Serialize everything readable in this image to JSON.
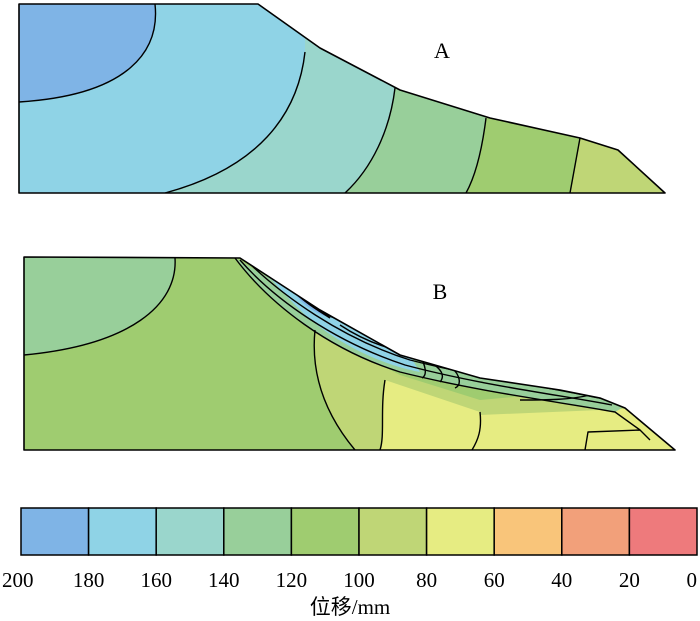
{
  "panel_a": {
    "label": "A"
  },
  "panel_b": {
    "label": "B"
  },
  "colorbar": {
    "unit_label": "位移/mm",
    "ticks": [
      "200",
      "180",
      "160",
      "140",
      "120",
      "100",
      "80",
      "60",
      "40",
      "20",
      "0"
    ],
    "colors": [
      "#7fb4e6",
      "#8fd3e6",
      "#9ad6cc",
      "#98cf9a",
      "#9fcc70",
      "#bfd676",
      "#e6ec82",
      "#f9c57a",
      "#f2a07a",
      "#ee7a7c"
    ]
  },
  "colors": {
    "c200": "#7fb4e6",
    "c180": "#8fd3e6",
    "c160": "#9ad6cc",
    "c140": "#98cf9a",
    "c120": "#9fcc70",
    "c100": "#bfd676",
    "c80": "#e6ec82"
  }
}
